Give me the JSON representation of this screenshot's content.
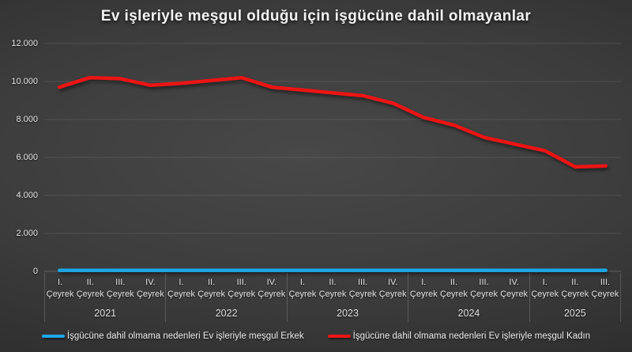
{
  "title": "Ev işleriyle meşgul olduğu için işgücüne dahil olmayanlar",
  "colors": {
    "background": "#3c3c3c",
    "gridline": "rgba(255,255,255,0.10)",
    "axis_line": "rgba(255,255,255,0.20)",
    "erkek_line": "#1ea6e6",
    "kadin_line": "#ed1414",
    "text": "#ededed"
  },
  "chart_data": {
    "type": "line",
    "title": "Ev işleriyle meşgul olduğu için işgücüne dahil olmayanlar",
    "ylim": [
      0,
      12000
    ],
    "grid": "horizontal",
    "legend_position": "bottom",
    "y_ticks": [
      {
        "label": "12.000",
        "value": 12000
      },
      {
        "label": "10.000",
        "value": 10000
      },
      {
        "label": "8.000",
        "value": 8000
      },
      {
        "label": "6.000",
        "value": 6000
      },
      {
        "label": "4.000",
        "value": 4000
      },
      {
        "label": "2.000",
        "value": 2000
      },
      {
        "label": "0",
        "value": 0
      }
    ],
    "quarter_word": "Çeyrek",
    "x_groups": [
      {
        "year": "2021",
        "quarters": [
          "I.",
          "II.",
          "III.",
          "IV."
        ]
      },
      {
        "year": "2022",
        "quarters": [
          "I.",
          "II.",
          "III.",
          "IV."
        ]
      },
      {
        "year": "2023",
        "quarters": [
          "I.",
          "II.",
          "III.",
          "IV."
        ]
      },
      {
        "year": "2024",
        "quarters": [
          "I.",
          "II.",
          "III.",
          "IV."
        ]
      },
      {
        "year": "2025",
        "quarters": [
          "I.",
          "II.",
          "III."
        ]
      }
    ],
    "categories": [
      "2021 I. Çeyrek",
      "2021 II. Çeyrek",
      "2021 III. Çeyrek",
      "2021 IV. Çeyrek",
      "2022 I. Çeyrek",
      "2022 II. Çeyrek",
      "2022 III. Çeyrek",
      "2022 IV. Çeyrek",
      "2023 I. Çeyrek",
      "2023 II. Çeyrek",
      "2023 III. Çeyrek",
      "2023 IV. Çeyrek",
      "2024 I. Çeyrek",
      "2024 II. Çeyrek",
      "2024 III. Çeyrek",
      "2024 IV. Çeyrek",
      "2025 I. Çeyrek",
      "2025 II. Çeyrek",
      "2025 III. Çeyrek"
    ],
    "series": [
      {
        "name": "İşgücüne dahil olmama nedenleri Ev işleriyle meşgul Erkek",
        "color": "#1ea6e6",
        "values": [
          50,
          50,
          50,
          50,
          50,
          50,
          50,
          50,
          50,
          50,
          50,
          50,
          50,
          50,
          50,
          50,
          50,
          50,
          50
        ]
      },
      {
        "name": "İşgücüne dahil olmama nedenleri Ev işleriyle meşgul Kadın",
        "color": "#ed1414",
        "values": [
          9700,
          10200,
          10150,
          9800,
          9900,
          10050,
          10200,
          9700,
          9550,
          9400,
          9250,
          8850,
          8100,
          7700,
          7050,
          6700,
          6350,
          5500,
          5550
        ]
      }
    ]
  },
  "legend": [
    {
      "label": "İşgücüne dahil olmama nedenleri Ev işleriyle meşgul Erkek",
      "color": "#1ea6e6"
    },
    {
      "label": "İşgücüne dahil olmama nedenleri Ev işleriyle meşgul Kadın",
      "color": "#ed1414"
    }
  ]
}
